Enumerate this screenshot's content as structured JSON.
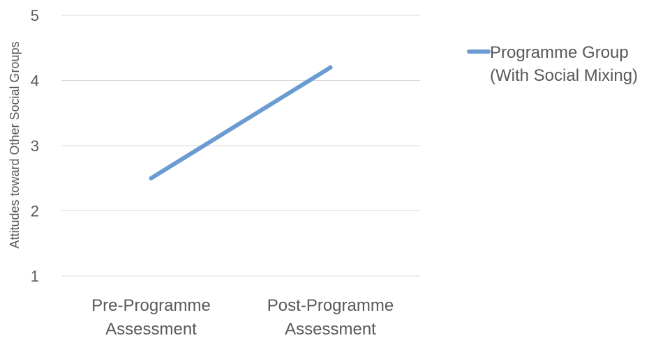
{
  "chart_data": {
    "type": "line",
    "categories": [
      [
        "Pre-Programme",
        "Assessment"
      ],
      [
        "Post-Programme",
        "Assessment"
      ]
    ],
    "series": [
      {
        "name": [
          "Programme Group",
          "(With Social Mixing)"
        ],
        "values": [
          2.5,
          4.2
        ],
        "color": "#6a9bd1"
      }
    ],
    "ylabel": "Attitudes toward Other Social Groups",
    "ylim": [
      1,
      5
    ],
    "yticks": [
      1,
      2,
      3,
      4,
      5
    ],
    "grid": true,
    "gridColor": "#d9d9d9",
    "legend": "right"
  }
}
